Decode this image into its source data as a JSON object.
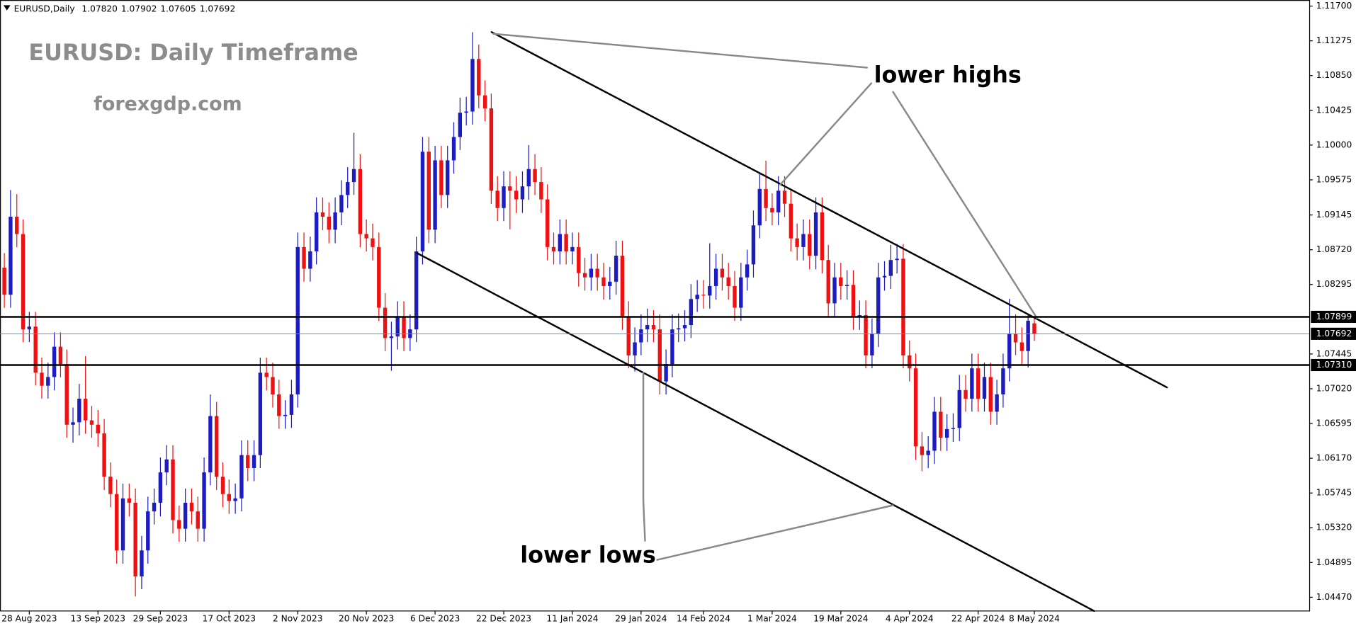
{
  "chart_data": {
    "type": "candlestick",
    "header": {
      "symbol": "EURUSD,Daily",
      "values": [
        "1.07820",
        "1.07902",
        "1.07605",
        "1.07692"
      ]
    },
    "title": "EURUSD: Daily Timeframe",
    "subtitle": "forexgdp.com",
    "annotations": [
      "lower highs",
      "lower lows"
    ],
    "up_color": "#1c1cc0",
    "down_color": "#ee1111",
    "categories": [
      null,
      null,
      null,
      null,
      "28 Aug 2023",
      null,
      null,
      null,
      null,
      null,
      null,
      null,
      null,
      null,
      null,
      "13 Sep 2023",
      null,
      null,
      null,
      null,
      null,
      null,
      null,
      null,
      null,
      "29 Sep 2023",
      null,
      null,
      null,
      null,
      null,
      null,
      null,
      null,
      null,
      null,
      "17 Oct 2023",
      null,
      null,
      null,
      null,
      null,
      null,
      null,
      null,
      null,
      null,
      "2 Nov 2023",
      null,
      null,
      null,
      null,
      null,
      null,
      null,
      null,
      null,
      null,
      "20 Nov 2023",
      null,
      null,
      null,
      null,
      null,
      null,
      null,
      null,
      null,
      null,
      "6 Dec 2023",
      null,
      null,
      null,
      null,
      null,
      null,
      null,
      null,
      null,
      null,
      "22 Dec 2023",
      null,
      null,
      null,
      null,
      null,
      null,
      null,
      null,
      null,
      null,
      "11 Jan 2024",
      null,
      null,
      null,
      null,
      null,
      null,
      null,
      null,
      null,
      null,
      "29 Jan 2024",
      null,
      null,
      null,
      null,
      null,
      null,
      null,
      null,
      null,
      "14 Feb 2024",
      null,
      null,
      null,
      null,
      null,
      null,
      null,
      null,
      null,
      null,
      "1 Mar 2024",
      null,
      null,
      null,
      null,
      null,
      null,
      null,
      null,
      null,
      null,
      "19 Mar 2024",
      null,
      null,
      null,
      null,
      null,
      null,
      null,
      null,
      null,
      null,
      "4 Apr 2024",
      null,
      null,
      null,
      null,
      null,
      null,
      null,
      null,
      null,
      null,
      "22 Apr 2024",
      null,
      null,
      null,
      null,
      null,
      null,
      null,
      null,
      "8 May 2024"
    ],
    "open": [
      1.085,
      1.0817,
      1.09124,
      1.08912,
      1.07746,
      1.0778,
      1.07216,
      1.07057,
      1.07163,
      1.07534,
      1.07322,
      1.0658,
      1.0661,
      1.06898,
      1.06633,
      1.0658,
      1.06474,
      1.05944,
      1.05732,
      1.05043,
      1.05679,
      1.05626,
      1.04725,
      1.05043,
      1.0552,
      1.05626,
      1.05997,
      1.06156,
      1.05414,
      1.05308,
      1.05626,
      1.0552,
      1.05308,
      1.05997,
      1.06686,
      1.05944,
      1.05732,
      1.05647,
      1.05679,
      1.06209,
      1.0605,
      1.06209,
      1.07216,
      1.07163,
      1.06951,
      1.06686,
      1.067,
      1.06951,
      1.08753,
      1.08488,
      1.087,
      1.09177,
      1.09124,
      1.08965,
      1.09177,
      1.09389,
      1.09548,
      1.09707,
      1.08912,
      1.08859,
      1.08753,
      1.08011,
      1.0764,
      1.0766,
      1.07905,
      1.0764,
      1.07746,
      1.087,
      1.09919,
      1.08965,
      1.09813,
      1.09389,
      1.09813,
      1.10099,
      1.10396,
      1.1041,
      1.11053,
      1.10608,
      1.10449,
      1.09442,
      1.0923,
      1.09495,
      1.09442,
      1.09336,
      1.09495,
      1.09707,
      1.09548,
      1.09336,
      1.08753,
      1.087,
      1.08912,
      1.087,
      1.08753,
      1.08435,
      1.08382,
      1.08488,
      1.08382,
      1.08276,
      1.08329,
      1.08647,
      1.07905,
      1.07428,
      1.07587,
      1.07746,
      1.07799,
      1.07746,
      1.0711,
      1.07322,
      1.07746,
      1.0776,
      1.07799,
      1.08117,
      1.0817,
      1.0816,
      1.08276,
      1.08488,
      1.08382,
      1.08276,
      1.08011,
      1.08382,
      1.08541,
      1.09018,
      1.09463,
      1.0923,
      1.09177,
      1.09442,
      1.09283,
      1.08859,
      1.08753,
      1.08912,
      1.08647,
      1.09177,
      1.08594,
      1.08064,
      1.08382,
      1.08276,
      1.0829,
      1.07905,
      1.0792,
      1.07428,
      1.07693,
      1.08382,
      1.084,
      1.08594,
      1.0861,
      1.07428,
      1.07269,
      1.06315,
      1.06209,
      1.06262,
      1.06739,
      1.06421,
      1.06527,
      1.0654,
      1.07004,
      1.06898,
      1.07269,
      1.06898,
      1.07163,
      1.06739,
      1.06951,
      1.07269,
      1.07693,
      1.07587,
      1.07481,
      1.0782
    ],
    "high": [
      1.0868,
      1.0945,
      1.094,
      1.0909,
      1.0796,
      1.0796,
      1.074,
      1.0734,
      1.0771,
      1.0771,
      1.075,
      1.0679,
      1.0708,
      1.0742,
      1.0681,
      1.0676,
      1.0665,
      1.0612,
      1.0591,
      1.0586,
      1.0586,
      1.058,
      1.0522,
      1.057,
      1.058,
      1.0618,
      1.0633,
      1.0633,
      1.0559,
      1.058,
      1.058,
      1.057,
      1.0618,
      1.0695,
      1.0686,
      1.0612,
      1.0591,
      1.0586,
      1.0639,
      1.0639,
      1.0639,
      1.074,
      1.074,
      1.0734,
      1.0713,
      1.0688,
      1.0713,
      1.0893,
      1.0893,
      1.0888,
      1.0936,
      1.0936,
      1.093,
      1.0936,
      1.0957,
      1.0973,
      1.1015,
      1.0989,
      1.0909,
      1.0904,
      1.0893,
      1.0819,
      1.0784,
      1.0809,
      1.0809,
      1.0793,
      1.0888,
      1.101,
      1.101,
      1.0999,
      1.0999,
      1.0999,
      1.1028,
      1.1058,
      1.1059,
      1.1138,
      1.1123,
      1.1079,
      1.1063,
      1.0962,
      1.0968,
      1.0968,
      1.0962,
      1.0968,
      1.1,
      1.0989,
      1.0973,
      1.0952,
      1.0893,
      1.0909,
      1.0909,
      1.0893,
      1.0893,
      1.0862,
      1.0867,
      1.0867,
      1.0856,
      1.0851,
      1.0883,
      1.0883,
      1.0809,
      1.0777,
      1.0793,
      1.08,
      1.0798,
      1.0793,
      1.075,
      1.0793,
      1.0794,
      1.0798,
      1.083,
      1.0835,
      1.0835,
      1.088,
      1.0867,
      1.0867,
      1.0856,
      1.0846,
      1.0856,
      1.0872,
      1.092,
      1.0965,
      1.0981,
      1.0941,
      1.0962,
      1.0962,
      1.0946,
      1.0904,
      1.0909,
      1.0909,
      1.0936,
      1.0936,
      1.0878,
      1.0856,
      1.0856,
      1.0847,
      1.0847,
      1.081,
      1.081,
      1.0788,
      1.0856,
      1.0858,
      1.0878,
      1.0879,
      1.0879,
      1.0761,
      1.0745,
      1.0649,
      1.0644,
      1.0692,
      1.0692,
      1.0671,
      1.0672,
      1.0719,
      1.0719,
      1.0745,
      1.0745,
      1.0734,
      1.0734,
      1.0713,
      1.0745,
      1.0812,
      1.0793,
      1.0777,
      1.0793,
      1.07902
    ],
    "low": [
      1.0801,
      1.0801,
      1.0875,
      1.0759,
      1.0759,
      1.0706,
      1.069,
      1.069,
      1.07,
      1.0716,
      1.0642,
      1.0636,
      1.0645,
      1.0647,
      1.0642,
      1.0631,
      1.0578,
      1.0557,
      1.0488,
      1.0488,
      1.0546,
      1.0448,
      1.0457,
      1.0488,
      1.0536,
      1.0546,
      1.0584,
      1.0525,
      1.0515,
      1.0515,
      1.0536,
      1.0515,
      1.0515,
      1.0584,
      1.0578,
      1.0557,
      1.0549,
      1.0549,
      1.0552,
      1.0589,
      1.0589,
      1.0605,
      1.07,
      1.0679,
      1.0653,
      1.0653,
      1.0654,
      1.0679,
      1.0833,
      1.0833,
      1.0854,
      1.0896,
      1.088,
      1.088,
      1.0902,
      1.0923,
      1.0939,
      1.0875,
      1.087,
      1.0859,
      1.0785,
      1.0748,
      1.0724,
      1.075,
      1.0748,
      1.0748,
      1.0759,
      1.0854,
      1.088,
      1.088,
      1.0923,
      1.0923,
      1.0965,
      1.0994,
      1.1024,
      1.1025,
      1.1045,
      1.1029,
      1.0928,
      1.0907,
      1.0907,
      1.0897,
      1.0917,
      1.0917,
      1.0933,
      1.0939,
      1.0917,
      1.0859,
      1.0854,
      1.0854,
      1.0854,
      1.0854,
      1.0827,
      1.0822,
      1.0822,
      1.0822,
      1.0811,
      1.0811,
      1.0817,
      1.0774,
      1.0727,
      1.0723,
      1.0743,
      1.0759,
      1.0759,
      1.0695,
      1.0695,
      1.0716,
      1.0759,
      1.076,
      1.0764,
      1.0796,
      1.08,
      1.08,
      1.0811,
      1.0822,
      1.0811,
      1.0785,
      1.0785,
      1.0822,
      1.0838,
      1.0886,
      1.0907,
      1.0902,
      1.0902,
      1.0912,
      1.087,
      1.0859,
      1.0859,
      1.0848,
      1.0848,
      1.0843,
      1.079,
      1.079,
      1.0811,
      1.0811,
      1.0774,
      1.0774,
      1.0727,
      1.0727,
      1.0753,
      1.0822,
      1.0824,
      1.0843,
      1.0727,
      1.0711,
      1.0615,
      1.0601,
      1.0605,
      1.061,
      1.0626,
      1.0626,
      1.0637,
      1.0638,
      1.0674,
      1.0674,
      1.0674,
      1.0674,
      1.0658,
      1.0658,
      1.0679,
      1.0711,
      1.0743,
      1.0732,
      1.0728,
      1.07605
    ],
    "close": [
      1.0817,
      1.09124,
      1.08912,
      1.07746,
      1.0778,
      1.07216,
      1.07057,
      1.07163,
      1.07534,
      1.07322,
      1.0658,
      1.0661,
      1.06898,
      1.06633,
      1.0658,
      1.06474,
      1.05944,
      1.05732,
      1.05043,
      1.05679,
      1.05626,
      1.04725,
      1.05043,
      1.0552,
      1.05626,
      1.05997,
      1.06156,
      1.05414,
      1.05308,
      1.05626,
      1.0552,
      1.05308,
      1.05997,
      1.06686,
      1.05944,
      1.05732,
      1.05647,
      1.05679,
      1.06209,
      1.0605,
      1.06209,
      1.07216,
      1.07163,
      1.06951,
      1.06686,
      1.067,
      1.06951,
      1.08753,
      1.08488,
      1.087,
      1.09177,
      1.09124,
      1.08965,
      1.09177,
      1.09389,
      1.09548,
      1.09707,
      1.08912,
      1.08859,
      1.08753,
      1.08011,
      1.0764,
      1.0766,
      1.07905,
      1.0764,
      1.07746,
      1.087,
      1.09919,
      1.08965,
      1.09813,
      1.09389,
      1.09813,
      1.10099,
      1.10396,
      1.1041,
      1.11053,
      1.10608,
      1.10449,
      1.09442,
      1.0923,
      1.09495,
      1.09442,
      1.09336,
      1.09495,
      1.09707,
      1.09548,
      1.09336,
      1.08753,
      1.087,
      1.08912,
      1.087,
      1.08753,
      1.08435,
      1.08382,
      1.08488,
      1.08382,
      1.08276,
      1.08329,
      1.08647,
      1.07905,
      1.07428,
      1.07587,
      1.07746,
      1.07799,
      1.07746,
      1.0711,
      1.07322,
      1.07746,
      1.0776,
      1.07799,
      1.08117,
      1.0817,
      1.0816,
      1.08276,
      1.08488,
      1.08382,
      1.08276,
      1.08011,
      1.08382,
      1.08541,
      1.09018,
      1.09463,
      1.0923,
      1.09177,
      1.09442,
      1.09283,
      1.08859,
      1.08753,
      1.08912,
      1.08647,
      1.09177,
      1.08594,
      1.08064,
      1.08382,
      1.08276,
      1.0829,
      1.07905,
      1.0792,
      1.07428,
      1.07693,
      1.08382,
      1.084,
      1.08594,
      1.0861,
      1.07428,
      1.07269,
      1.06315,
      1.06209,
      1.06262,
      1.06739,
      1.06421,
      1.06527,
      1.0654,
      1.07004,
      1.06898,
      1.07269,
      1.06898,
      1.07163,
      1.06739,
      1.06951,
      1.07269,
      1.07693,
      1.07587,
      1.07481,
      1.07852,
      1.07692
    ],
    "ylim": [
      1.04302,
      1.11774
    ],
    "yticks": [
      {
        "value": 1.117,
        "label": "1.11700"
      },
      1.11275,
      {
        "value": 1.1085,
        "label": "1.10850"
      },
      1.10425,
      {
        "value": 1.1,
        "label": "1.10000"
      },
      1.09575,
      1.09145,
      {
        "value": 1.0872,
        "label": "1.08720"
      },
      1.08295,
      1.07445,
      {
        "value": 1.0702,
        "label": "1.07020"
      },
      1.06595,
      {
        "value": 1.0617,
        "label": "1.06170"
      },
      1.05745,
      {
        "value": 1.0532,
        "label": "1.05320"
      },
      1.04895,
      {
        "value": 1.0447,
        "label": "1.04470"
      }
    ],
    "levels": [
      1.07899,
      {
        "value": 1.0731,
        "label": "1.07310"
      }
    ],
    "level_color": "#000000",
    "current_price": 1.07692,
    "current_color": "#6a88c4"
  }
}
